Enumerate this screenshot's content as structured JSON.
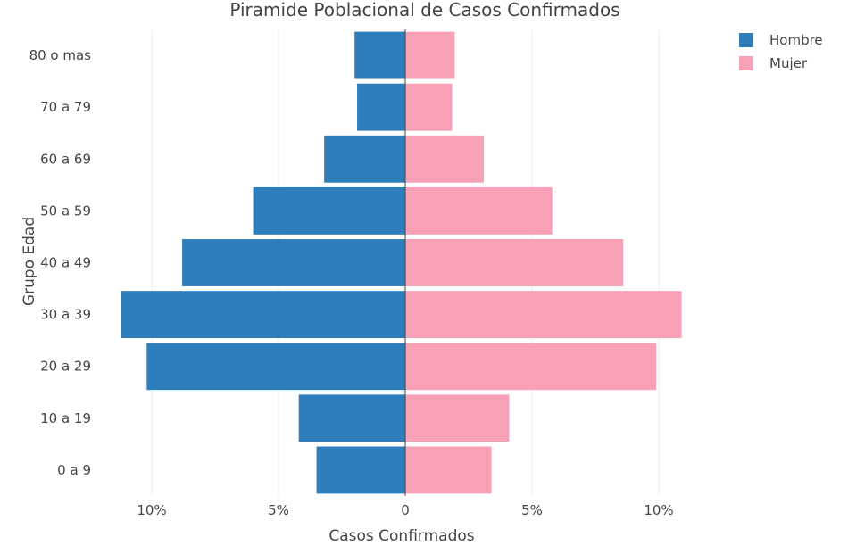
{
  "chart_data": {
    "type": "bar",
    "orientation": "horizontal",
    "title": "Piramide Poblacional de Casos Confirmados",
    "xlabel": "Casos Confirmados",
    "ylabel": "Grupo Edad",
    "categories": [
      "0 a 9",
      "10 a 19",
      "20 a 29",
      "30 a 39",
      "40 a 49",
      "50 a 59",
      "60 a 69",
      "70 a 79",
      "80 o mas"
    ],
    "series": [
      {
        "name": "Hombre",
        "color": "#2e7ebc",
        "values": [
          -3.5,
          -4.2,
          -10.2,
          -11.2,
          -8.8,
          -6.0,
          -3.2,
          -1.9,
          -2.0
        ]
      },
      {
        "name": "Mujer",
        "color": "#f8a0b5",
        "values": [
          3.4,
          4.1,
          9.9,
          10.9,
          8.6,
          5.8,
          3.1,
          1.85,
          1.95
        ]
      }
    ],
    "xlim": [
      -12,
      12
    ],
    "xticks": [
      -10,
      -5,
      0,
      5,
      10
    ],
    "xtick_labels": [
      "10%",
      "5%",
      "0",
      "5%",
      "10%"
    ],
    "grid": true,
    "legend": "top-right"
  }
}
